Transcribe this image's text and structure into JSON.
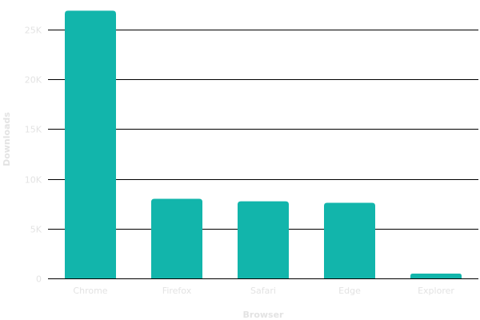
{
  "chart_data": {
    "type": "bar",
    "title": "",
    "xlabel": "Browser",
    "ylabel": "Downloads",
    "categories": [
      "Chrome",
      "Firefox",
      "Safari",
      "Edge",
      "Explorer"
    ],
    "values": [
      26900,
      8000,
      7750,
      7600,
      480
    ],
    "ylim": [
      0,
      25000
    ],
    "yticks": [
      0,
      5000,
      10000,
      15000,
      20000,
      25000
    ],
    "ytick_labels": [
      "0",
      "5K",
      "10K",
      "15K",
      "20K",
      "25K"
    ],
    "grid": true,
    "legend": "none",
    "colors": {
      "bar": "#12b5ab",
      "grid": "#000000",
      "text": "#e3e3e3"
    }
  }
}
